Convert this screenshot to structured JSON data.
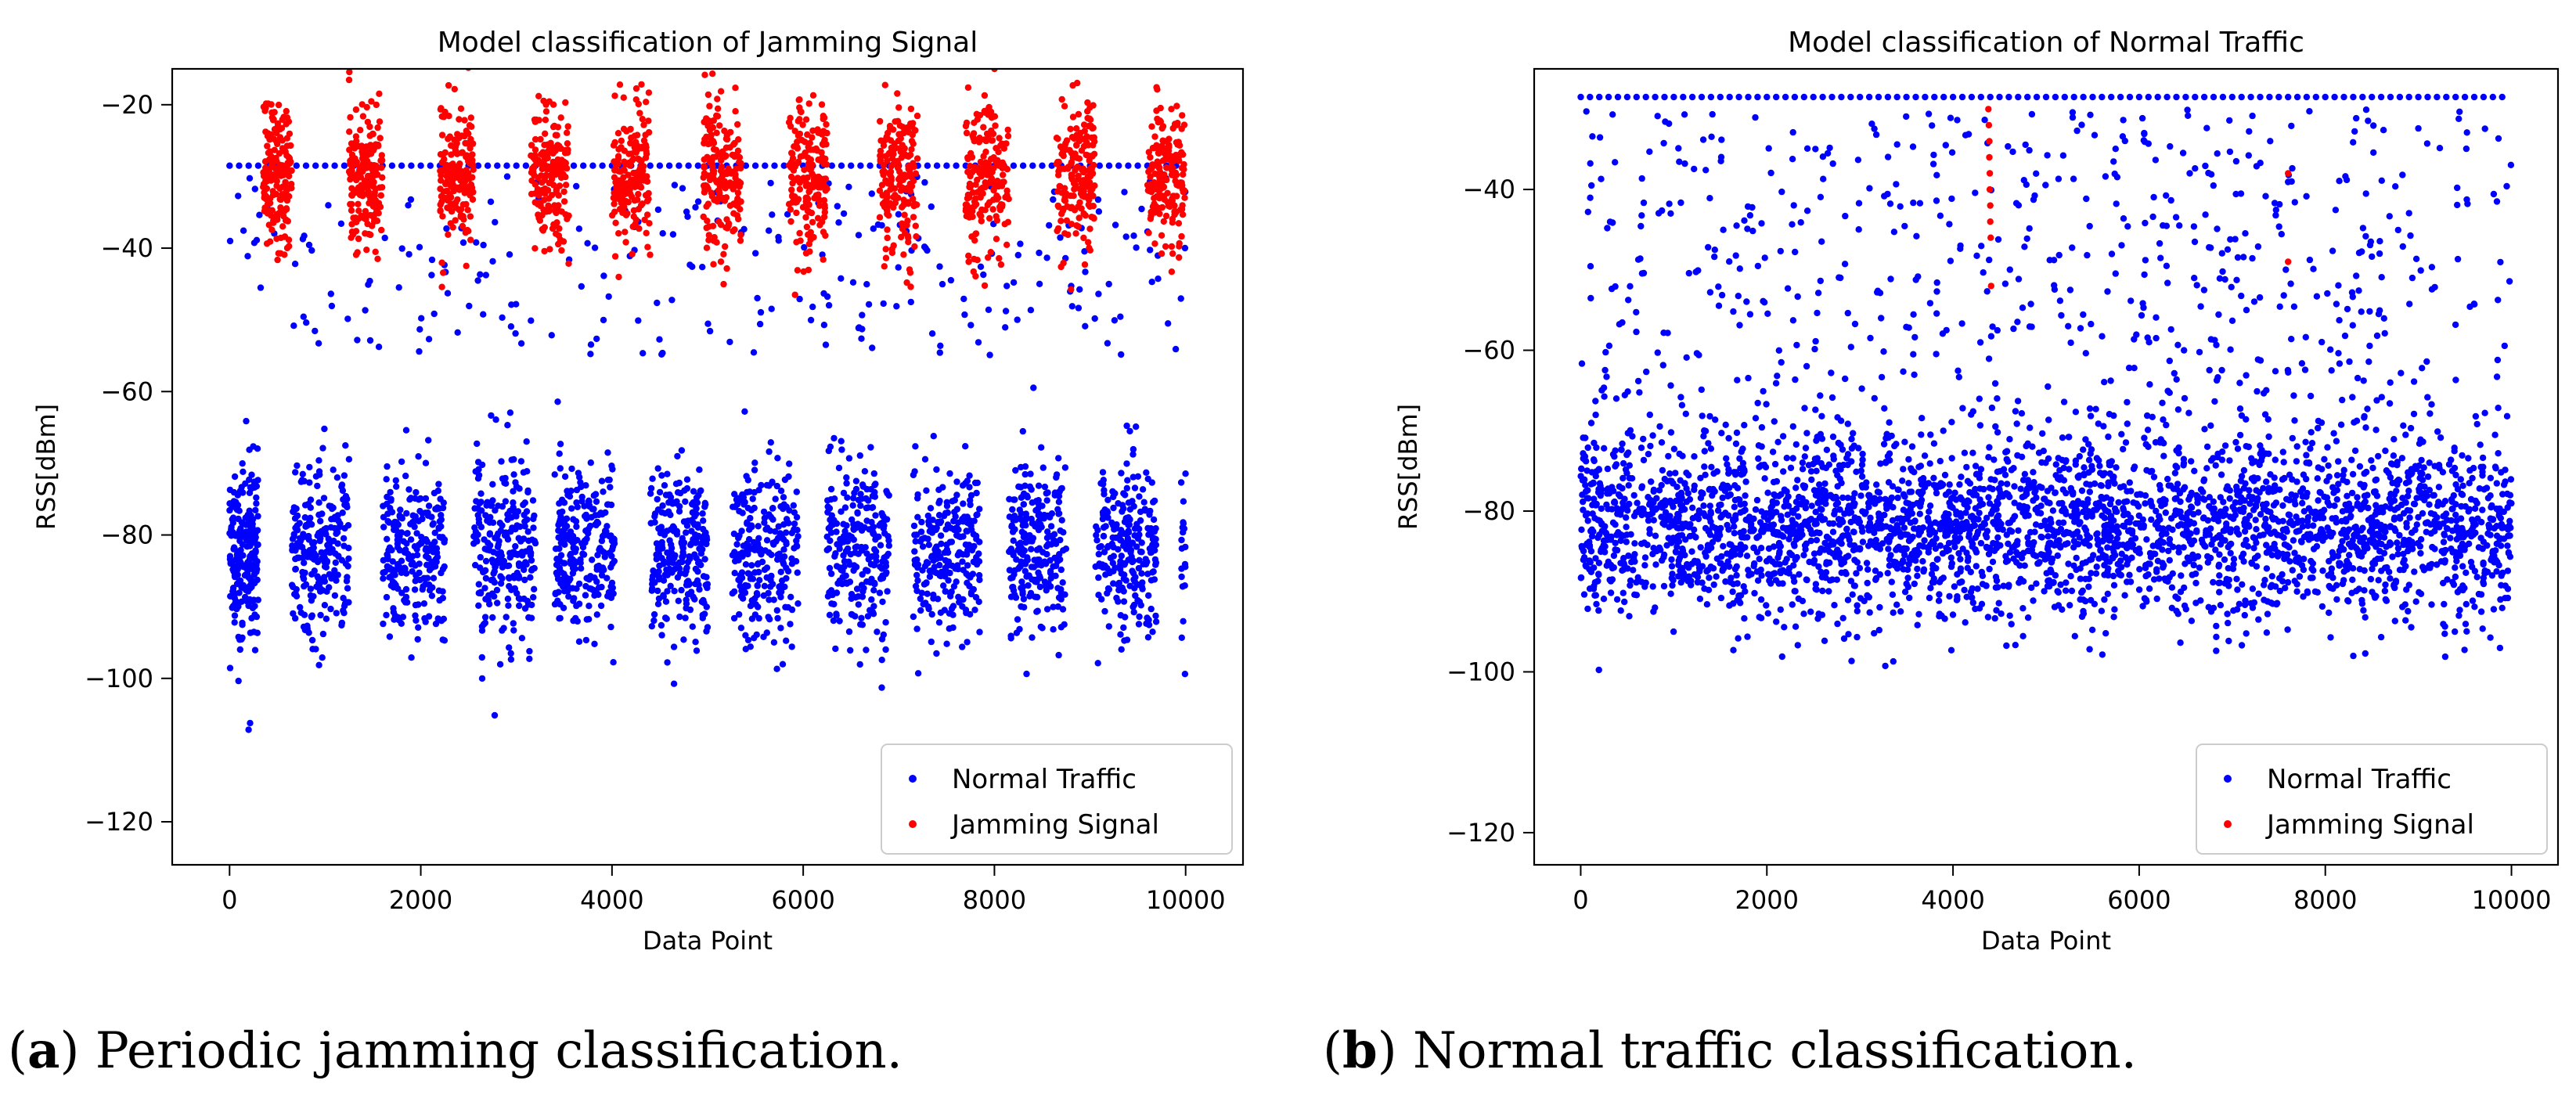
{
  "colors": {
    "normal": "#0000ff",
    "jamming": "#ff0000"
  },
  "captions": [
    {
      "letter": "a",
      "text": "Periodic jamming classification."
    },
    {
      "letter": "b",
      "text": "Normal traffic classification."
    }
  ],
  "chart_data": [
    {
      "type": "scatter",
      "title": "Model classification of Jamming Signal",
      "xlabel": "Data Point",
      "ylabel": "RSS[dBm]",
      "xlim": [
        -600,
        10600
      ],
      "ylim": [
        -126,
        -15
      ],
      "xticks": [
        0,
        2000,
        4000,
        6000,
        8000,
        10000
      ],
      "yticks": [
        -120,
        -100,
        -80,
        -60,
        -40,
        -20
      ],
      "legend": {
        "placement": "lower-right",
        "entries": [
          "Normal Traffic",
          "Jamming Signal"
        ]
      },
      "series": [
        {
          "name": "Normal Traffic",
          "color": "#0000ff",
          "clusters": [
            {
              "x_start": 0,
              "x_end": 300,
              "y_center": -82,
              "y_spread": 6,
              "count": 240
            },
            {
              "x_start": 650,
              "x_end": 1250,
              "y_center": -82,
              "y_spread": 6,
              "count": 240
            },
            {
              "x_start": 1600,
              "x_end": 2250,
              "y_center": -82,
              "y_spread": 6,
              "count": 240
            },
            {
              "x_start": 2550,
              "x_end": 3200,
              "y_center": -82,
              "y_spread": 6,
              "count": 240
            },
            {
              "x_start": 3400,
              "x_end": 4050,
              "y_center": -82,
              "y_spread": 6,
              "count": 240
            },
            {
              "x_start": 4400,
              "x_end": 5000,
              "y_center": -82,
              "y_spread": 6,
              "count": 240
            },
            {
              "x_start": 5250,
              "x_end": 5950,
              "y_center": -82,
              "y_spread": 6,
              "count": 240
            },
            {
              "x_start": 6250,
              "x_end": 6900,
              "y_center": -82,
              "y_spread": 6,
              "count": 240
            },
            {
              "x_start": 7150,
              "x_end": 7850,
              "y_center": -82,
              "y_spread": 6,
              "count": 240
            },
            {
              "x_start": 8150,
              "x_end": 8750,
              "y_center": -82,
              "y_spread": 6,
              "count": 240
            },
            {
              "x_start": 9050,
              "x_end": 9700,
              "y_center": -82,
              "y_spread": 6,
              "count": 240
            },
            {
              "x_start": 9950,
              "x_end": 10000,
              "y_center": -82,
              "y_spread": 6,
              "count": 20
            }
          ],
          "line": {
            "y": -28.5,
            "x_start": 0,
            "x_end": 9900,
            "step": 100
          },
          "scatter": {
            "x_start": 0,
            "x_end": 10000,
            "y_min": -55,
            "y_max": -30,
            "count": 260
          }
        },
        {
          "name": "Jamming Signal",
          "color": "#ff0000",
          "clusters": [
            {
              "x_start": 350,
              "x_end": 650,
              "y_center": -30,
              "y_spread": 5,
              "count": 180
            },
            {
              "x_start": 1250,
              "x_end": 1600,
              "y_center": -30,
              "y_spread": 5,
              "count": 180
            },
            {
              "x_start": 2200,
              "x_end": 2550,
              "y_center": -30,
              "y_spread": 5,
              "count": 180
            },
            {
              "x_start": 3150,
              "x_end": 3550,
              "y_center": -30,
              "y_spread": 5,
              "count": 180
            },
            {
              "x_start": 4000,
              "x_end": 4400,
              "y_center": -30,
              "y_spread": 5,
              "count": 180
            },
            {
              "x_start": 4950,
              "x_end": 5350,
              "y_center": -30,
              "y_spread": 5,
              "count": 180
            },
            {
              "x_start": 5850,
              "x_end": 6250,
              "y_center": -30,
              "y_spread": 5,
              "count": 180
            },
            {
              "x_start": 6800,
              "x_end": 7200,
              "y_center": -30,
              "y_spread": 5,
              "count": 180
            },
            {
              "x_start": 7700,
              "x_end": 8150,
              "y_center": -30,
              "y_spread": 5,
              "count": 180
            },
            {
              "x_start": 8650,
              "x_end": 9050,
              "y_center": -30,
              "y_spread": 5,
              "count": 180
            },
            {
              "x_start": 9600,
              "x_end": 10000,
              "y_center": -30,
              "y_spread": 5,
              "count": 180
            }
          ]
        }
      ]
    },
    {
      "type": "scatter",
      "title": "Model classification of Normal Traffic",
      "xlabel": "Data Point",
      "ylabel": "RSS[dBm]",
      "xlim": [
        -500,
        10500
      ],
      "ylim": [
        -124,
        -25
      ],
      "xticks": [
        0,
        2000,
        4000,
        6000,
        8000,
        10000
      ],
      "yticks": [
        -120,
        -100,
        -80,
        -60,
        -40
      ],
      "legend": {
        "placement": "lower-right",
        "entries": [
          "Normal Traffic",
          "Jamming Signal"
        ]
      },
      "series": [
        {
          "name": "Normal Traffic",
          "color": "#0000ff",
          "clusters": [
            {
              "x_start": 0,
              "x_end": 10000,
              "y_center": -82,
              "y_spread": 5.5,
              "count": 3200
            }
          ],
          "line": {
            "y": -28.5,
            "x_start": 0,
            "x_end": 9900,
            "step": 100
          },
          "scatter": {
            "x_start": 0,
            "x_end": 10000,
            "y_min": -75,
            "y_max": -30,
            "count": 700
          }
        },
        {
          "name": "Jamming Signal",
          "color": "#ff0000",
          "points": [
            [
              4380,
              -30
            ],
            [
              4385,
              -32
            ],
            [
              4390,
              -34
            ],
            [
              4390,
              -36
            ],
            [
              4395,
              -38
            ],
            [
              4395,
              -40
            ],
            [
              4400,
              -42
            ],
            [
              4400,
              -44
            ],
            [
              4405,
              -46
            ],
            [
              4410,
              -52
            ],
            [
              7600,
              -38
            ],
            [
              7600,
              -49
            ]
          ]
        }
      ]
    }
  ]
}
